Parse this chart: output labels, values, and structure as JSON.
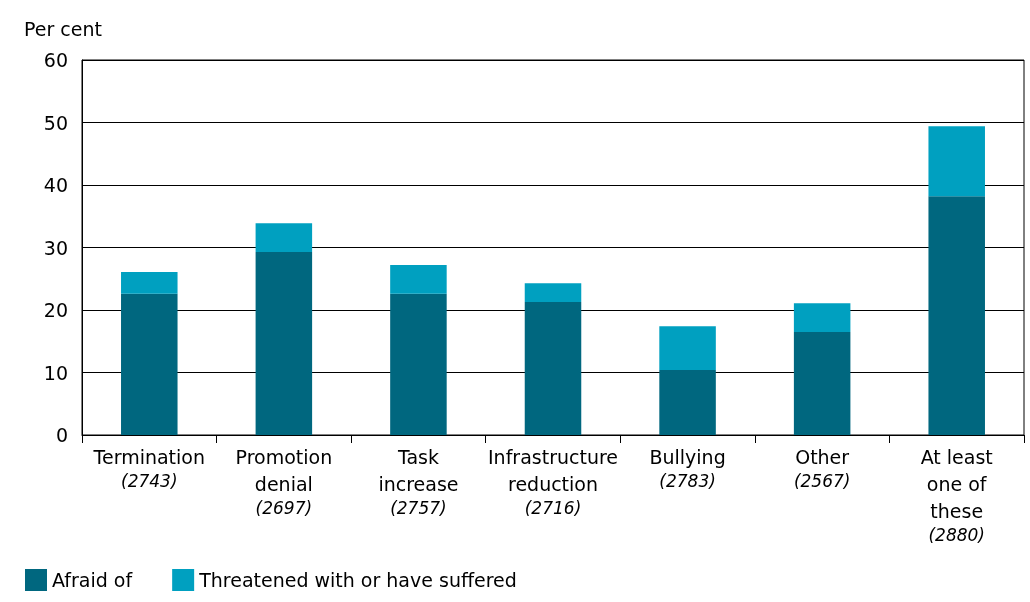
{
  "chart_data": {
    "type": "bar",
    "stacked": true,
    "ylabel": "Per cent",
    "categories": [
      "Termination (2743)",
      "Promotion denial (2697)",
      "Task increase (2757)",
      "Infrastructure reduction (2716)",
      "Bullying (2783)",
      "Other (2567)",
      "At least one of these (2880)"
    ],
    "series": [
      {
        "name": "Afraid of",
        "color": "#00677f",
        "values": [
          22.6,
          29.3,
          22.6,
          21.3,
          10.4,
          16.5,
          38.2
        ]
      },
      {
        "name": "Threatened with or have suffered",
        "color": "#00a0c0",
        "values": [
          3.5,
          4.6,
          4.6,
          3.0,
          7.0,
          4.6,
          11.2
        ]
      }
    ],
    "ylim": [
      0,
      60
    ],
    "yticks": [
      0,
      10,
      20,
      30,
      40,
      50,
      60
    ],
    "grid": "y",
    "legend": "bottom left"
  }
}
